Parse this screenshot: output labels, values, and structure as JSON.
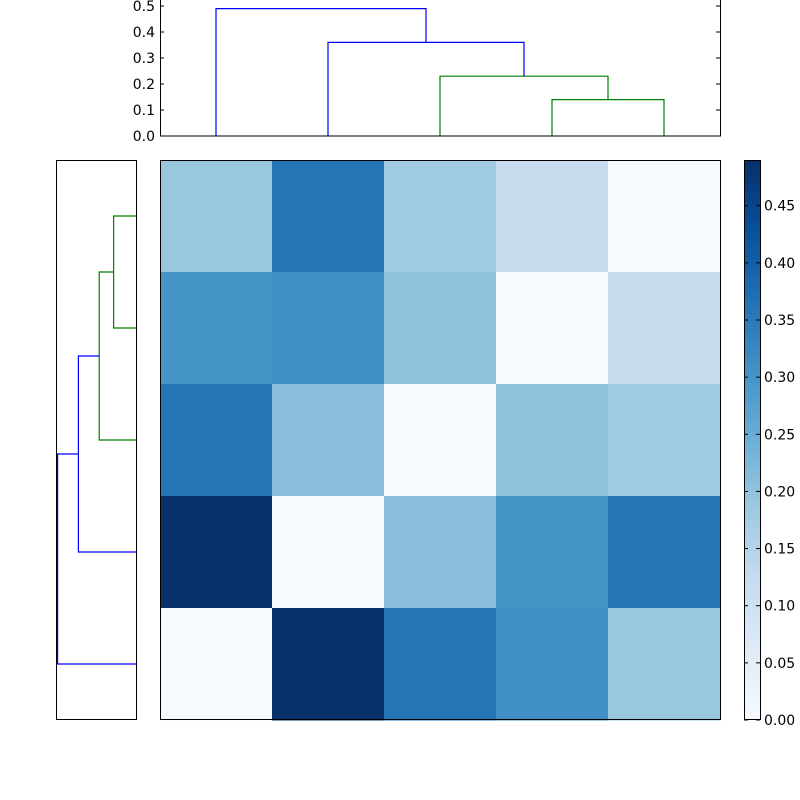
{
  "chart_data": {
    "type": "heatmap",
    "title": "",
    "xlabel": "",
    "ylabel": "",
    "colormap": "Blues",
    "colors": {
      "dendrogram_above_threshold": "#0000ff",
      "dendrogram_cluster": "#008000",
      "colormap_low": "#f7fbff",
      "colormap_high": "#08306b"
    },
    "matrix": [
      [
        0.19,
        0.36,
        0.18,
        0.12,
        0.0
      ],
      [
        0.3,
        0.31,
        0.2,
        0.0,
        0.12
      ],
      [
        0.36,
        0.21,
        0.0,
        0.2,
        0.18
      ],
      [
        0.49,
        0.0,
        0.21,
        0.3,
        0.36
      ],
      [
        0.0,
        0.49,
        0.36,
        0.31,
        0.19
      ]
    ],
    "colorbar": {
      "min": 0.0,
      "max": 0.49,
      "ticks": [
        "0.00",
        "0.05",
        "0.10",
        "0.15",
        "0.20",
        "0.25",
        "0.30",
        "0.35",
        "0.40",
        "0.45"
      ]
    },
    "top_dendrogram": {
      "ylim": [
        0.0,
        0.5
      ],
      "ticks": [
        "0.0",
        "0.1",
        "0.2",
        "0.3",
        "0.4",
        "0.5"
      ],
      "merges": [
        {
          "left": 3,
          "right": 4,
          "height": 0.14,
          "color": "green"
        },
        {
          "left": 2,
          "right": "3+4",
          "height": 0.23,
          "color": "green"
        },
        {
          "left": 1,
          "right": "2+3+4",
          "height": 0.36,
          "color": "blue"
        },
        {
          "left": 0,
          "right": "1+2+3+4",
          "height": 0.49,
          "color": "blue"
        }
      ]
    },
    "left_dendrogram": {
      "xlim": [
        0.0,
        0.5
      ],
      "merges": [
        {
          "top": 0,
          "bottom": 1,
          "height": 0.14,
          "color": "green"
        },
        {
          "top": "0+1",
          "bottom": 2,
          "height": 0.23,
          "color": "green"
        },
        {
          "top": "0+1+2",
          "bottom": 3,
          "height": 0.36,
          "color": "blue"
        },
        {
          "top": "0+1+2+3",
          "bottom": 4,
          "height": 0.49,
          "color": "blue"
        }
      ]
    }
  }
}
